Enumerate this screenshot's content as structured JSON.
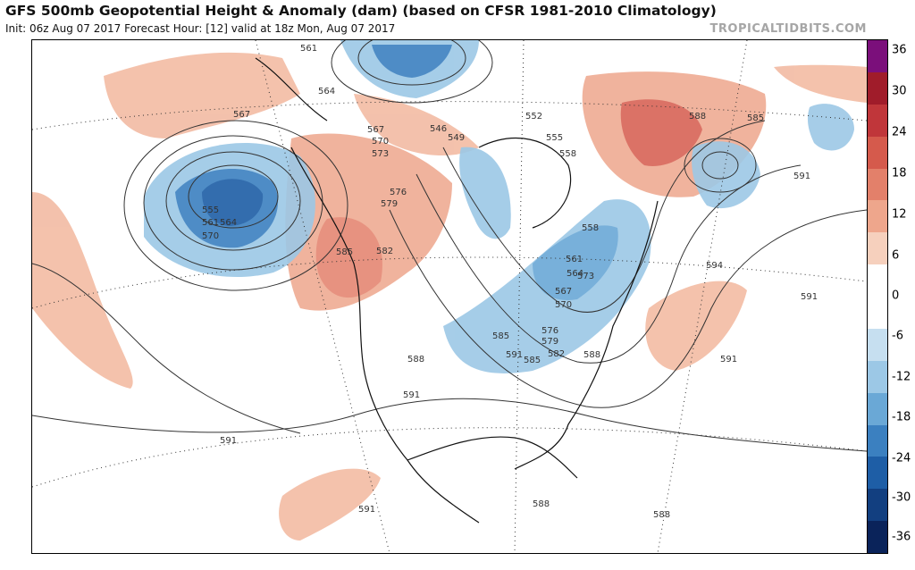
{
  "header": {
    "title": "GFS 500mb Geopotential Height & Anomaly (dam) (based on CFSR 1981-2010 Climatology)",
    "subtitle": "Init: 06z Aug 07 2017   Forecast Hour: [12]   valid at 18z Mon, Aug 07 2017",
    "brand": "TROPICALTIDBITS.COM"
  },
  "colorbar": {
    "ticks": [
      "36",
      "30",
      "24",
      "18",
      "12",
      "6",
      "0",
      "-6",
      "-12",
      "-18",
      "-24",
      "-30",
      "-36"
    ],
    "colors": [
      "#7b0f7b",
      "#a01c2a",
      "#c0363a",
      "#d55a4c",
      "#e3806a",
      "#eea68c",
      "#f6d0bd",
      "#ffffff",
      "#ffffff",
      "#c6dff0",
      "#9cc8e6",
      "#6aa8d6",
      "#3b80c0",
      "#1e5ea6",
      "#123f80",
      "#0a235a"
    ]
  },
  "map": {
    "height_labels": [
      "561",
      "564",
      "567",
      "546",
      "549",
      "552",
      "555",
      "558",
      "585",
      "588",
      "591",
      "567",
      "570",
      "573",
      "576",
      "579",
      "582",
      "585",
      "555",
      "561",
      "564",
      "570",
      "558",
      "561",
      "564",
      "567",
      "570",
      "573",
      "576",
      "579",
      "582",
      "585",
      "588",
      "594",
      "591",
      "591",
      "585",
      "588",
      "591",
      "591",
      "591",
      "591",
      "588",
      "588"
    ]
  }
}
